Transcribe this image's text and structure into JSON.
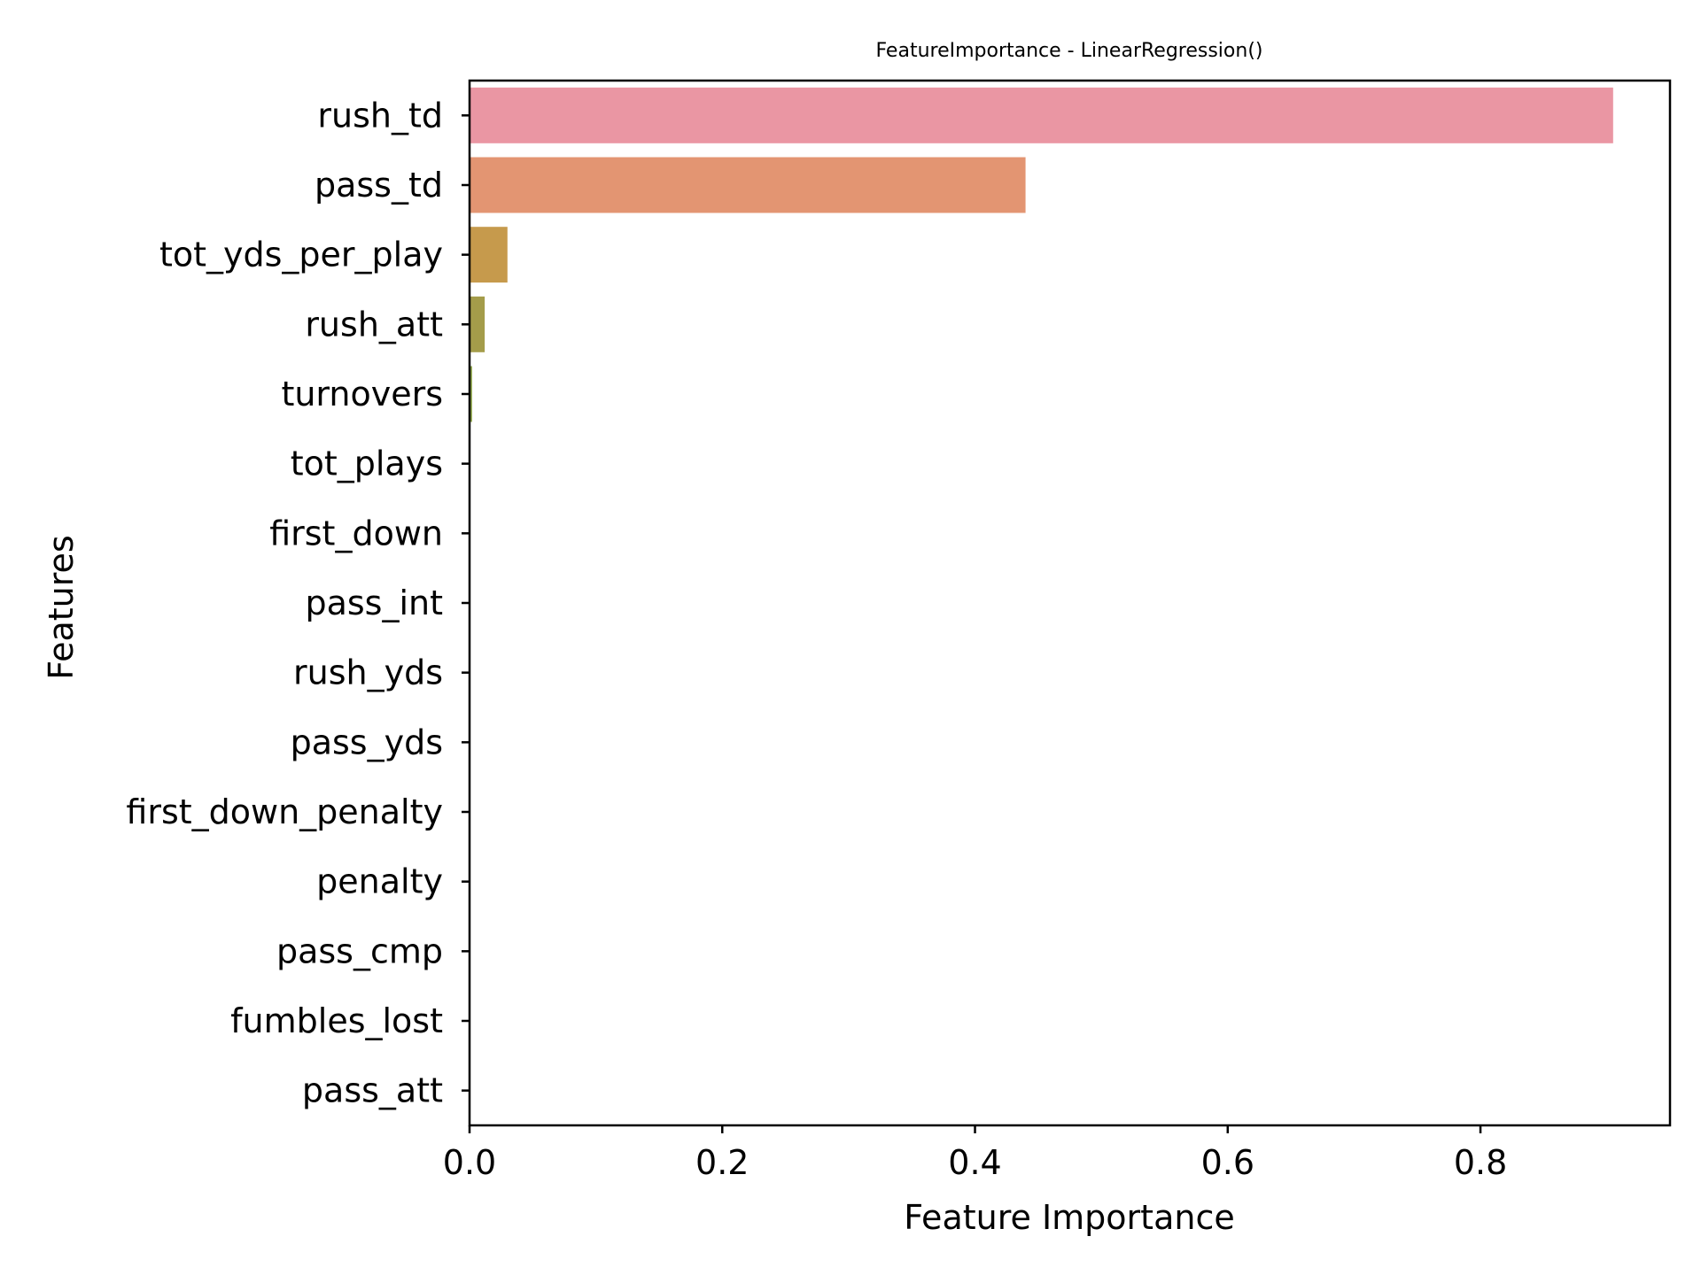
{
  "chart_data": {
    "type": "bar",
    "orientation": "horizontal",
    "title": "FeatureImportance - LinearRegression()",
    "xlabel": "Feature Importance",
    "ylabel": "Features",
    "categories": [
      "rush_td",
      "pass_td",
      "tot_yds_per_play",
      "rush_att",
      "turnovers",
      "tot_plays",
      "first_down",
      "pass_int",
      "rush_yds",
      "pass_yds",
      "first_down_penalty",
      "penalty",
      "pass_cmp",
      "fumbles_lost",
      "pass_att"
    ],
    "values": [
      0.905,
      0.44,
      0.03,
      0.012,
      0.002,
      0.0,
      0.0,
      0.0,
      0.0,
      0.0,
      0.0,
      0.0,
      0.0,
      0.0,
      0.0
    ],
    "colors": [
      "#ea96a3",
      "#e39572",
      "#c69a4c",
      "#a49c4a",
      "#8ea648",
      "#5fae4f",
      "#56ad7d",
      "#58aa97",
      "#59a9a8",
      "#5ca8ba",
      "#64a6d1",
      "#8e9ee8",
      "#c28fe6",
      "#e181d8",
      "#e98ab9"
    ],
    "xlim": [
      0,
      0.95
    ],
    "xticks": [
      0.0,
      0.2,
      0.4,
      0.6,
      0.8
    ],
    "xtick_labels": [
      "0.0",
      "0.2",
      "0.4",
      "0.6",
      "0.8"
    ],
    "grid": false
  }
}
